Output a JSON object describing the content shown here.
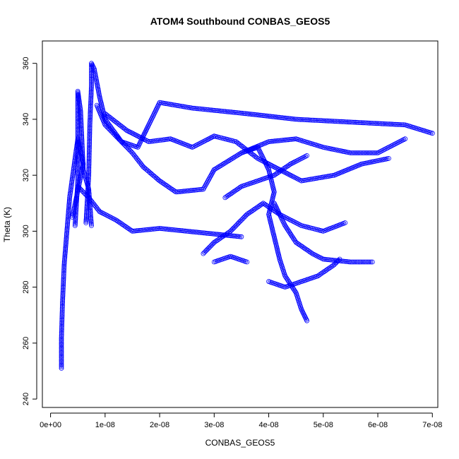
{
  "chart_data": {
    "type": "scatter",
    "title": "ATOM4 Southbound CONBAS_GEOS5",
    "xlabel": "CONBAS_GEOS5",
    "ylabel": "Theta (K)",
    "xlim": [
      -1.5e-09,
      7.1e-08
    ],
    "ylim": [
      237,
      368
    ],
    "x_ticks": [
      0,
      1e-08,
      2e-08,
      3e-08,
      4e-08,
      5e-08,
      6e-08,
      7e-08
    ],
    "x_tick_labels": [
      "0e+00",
      "1e-08",
      "2e-08",
      "3e-08",
      "4e-08",
      "5e-08",
      "6e-08",
      "7e-08"
    ],
    "y_ticks": [
      240,
      260,
      280,
      300,
      320,
      340,
      360
    ],
    "y_tick_labels": [
      "240",
      "260",
      "280",
      "300",
      "320",
      "340",
      "360"
    ],
    "grid": false,
    "marker": "open-circle",
    "color": "#0000ff",
    "series": [
      {
        "values": [
          [
            2e-09,
            251
          ],
          [
            2e-09,
            262
          ],
          [
            2.2e-09,
            275
          ],
          [
            2.5e-09,
            288
          ],
          [
            3e-09,
            300
          ],
          [
            3.5e-09,
            312
          ],
          [
            4.5e-09,
            326
          ],
          [
            5e-09,
            333
          ],
          [
            6e-09,
            324
          ],
          [
            4e-09,
            305
          ]
        ]
      },
      {
        "values": [
          [
            4.5e-09,
            302
          ],
          [
            5e-09,
            318
          ],
          [
            5e-09,
            335
          ],
          [
            5e-09,
            350
          ],
          [
            5.5e-09,
            343
          ],
          [
            6e-09,
            322
          ],
          [
            7e-09,
            315
          ],
          [
            7.5e-09,
            302
          ]
        ]
      },
      {
        "values": [
          [
            6.5e-09,
            303
          ],
          [
            7e-09,
            320
          ],
          [
            7.2e-09,
            338
          ],
          [
            7.5e-09,
            352
          ],
          [
            7.5e-09,
            360
          ],
          [
            8e-09,
            358
          ],
          [
            9e-09,
            348
          ],
          [
            1e-08,
            340
          ],
          [
            1.3e-08,
            332
          ],
          [
            1.6e-08,
            330
          ],
          [
            1.8e-08,
            338
          ],
          [
            2e-08,
            346
          ],
          [
            2.6e-08,
            344
          ],
          [
            3.6e-08,
            342
          ],
          [
            4.5e-08,
            340
          ],
          [
            5.5e-08,
            339
          ],
          [
            6.5e-08,
            338
          ],
          [
            7e-08,
            335
          ]
        ]
      },
      {
        "values": [
          [
            8.5e-09,
            345
          ],
          [
            1e-08,
            338
          ],
          [
            1.3e-08,
            332
          ],
          [
            1.5e-08,
            328
          ],
          [
            1.7e-08,
            323
          ],
          [
            2e-08,
            318
          ],
          [
            2.3e-08,
            314
          ],
          [
            2.8e-08,
            315
          ],
          [
            3e-08,
            322
          ],
          [
            3.5e-08,
            328
          ],
          [
            4e-08,
            332
          ],
          [
            4.5e-08,
            333
          ],
          [
            5e-08,
            330
          ],
          [
            5.5e-08,
            328
          ],
          [
            6e-08,
            328
          ],
          [
            6.5e-08,
            333
          ]
        ]
      },
      {
        "values": [
          [
            5e-09,
            316
          ],
          [
            7e-09,
            312
          ],
          [
            9e-09,
            307
          ],
          [
            1.2e-08,
            304
          ],
          [
            1.5e-08,
            300
          ],
          [
            2e-08,
            301
          ],
          [
            2.5e-08,
            300
          ],
          [
            3e-08,
            299
          ],
          [
            3.5e-08,
            298
          ]
        ]
      },
      {
        "values": [
          [
            1e-08,
            342
          ],
          [
            1.4e-08,
            336
          ],
          [
            1.8e-08,
            332
          ],
          [
            2.2e-08,
            333
          ],
          [
            2.6e-08,
            330
          ],
          [
            3e-08,
            334
          ],
          [
            3.4e-08,
            332
          ],
          [
            3.8e-08,
            326
          ],
          [
            4.2e-08,
            322
          ],
          [
            4.6e-08,
            318
          ],
          [
            5.2e-08,
            320
          ],
          [
            5.7e-08,
            324
          ],
          [
            6.2e-08,
            326
          ]
        ]
      },
      {
        "values": [
          [
            3.5e-08,
            328
          ],
          [
            3.8e-08,
            330
          ],
          [
            4e-08,
            322
          ],
          [
            4.1e-08,
            314
          ],
          [
            4e-08,
            306
          ],
          [
            4.1e-08,
            298
          ],
          [
            4.2e-08,
            290
          ],
          [
            4.3e-08,
            284
          ],
          [
            4.5e-08,
            278
          ],
          [
            4.6e-08,
            272
          ],
          [
            4.7e-08,
            268
          ]
        ]
      },
      {
        "values": [
          [
            4.1e-08,
            310
          ],
          [
            4.3e-08,
            302
          ],
          [
            4.5e-08,
            296
          ],
          [
            4.8e-08,
            292
          ],
          [
            5e-08,
            290
          ],
          [
            5.5e-08,
            289
          ],
          [
            5.9e-08,
            289
          ]
        ]
      },
      {
        "values": [
          [
            4e-08,
            282
          ],
          [
            4.3e-08,
            280
          ],
          [
            4.6e-08,
            282
          ],
          [
            4.9e-08,
            284
          ],
          [
            5.2e-08,
            288
          ],
          [
            5.3e-08,
            290
          ]
        ]
      },
      {
        "values": [
          [
            2.8e-08,
            292
          ],
          [
            3e-08,
            296
          ],
          [
            3.3e-08,
            300
          ],
          [
            3.6e-08,
            306
          ],
          [
            3.9e-08,
            310
          ],
          [
            4.2e-08,
            306
          ],
          [
            4.6e-08,
            302
          ],
          [
            5e-08,
            300
          ],
          [
            5.4e-08,
            303
          ]
        ]
      },
      {
        "values": [
          [
            3.2e-08,
            312
          ],
          [
            3.5e-08,
            316
          ],
          [
            3.8e-08,
            318
          ],
          [
            4.1e-08,
            320
          ],
          [
            4.4e-08,
            324
          ],
          [
            4.7e-08,
            327
          ]
        ]
      },
      {
        "values": [
          [
            3e-08,
            289
          ],
          [
            3.3e-08,
            291
          ],
          [
            3.6e-08,
            289
          ]
        ]
      }
    ]
  }
}
